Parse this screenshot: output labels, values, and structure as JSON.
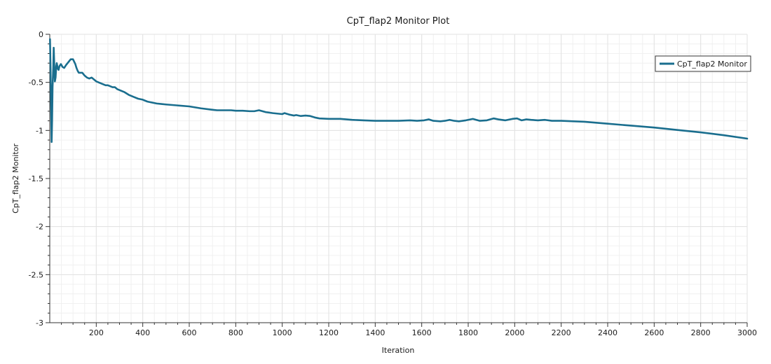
{
  "chart_data": {
    "type": "line",
    "title": "CpT_flap2 Monitor Plot",
    "xlabel": "Iteration",
    "ylabel": "CpT_flap2 Monitor",
    "xlim": [
      0,
      3000
    ],
    "ylim": [
      -3,
      0
    ],
    "x_ticks": [
      200,
      400,
      600,
      800,
      1000,
      1200,
      1400,
      1600,
      1800,
      2000,
      2200,
      2400,
      2600,
      2800,
      3000
    ],
    "x_tick_labels": [
      "200",
      "400",
      "600",
      "800",
      "1000",
      "1200",
      "1400",
      "1600",
      "1800",
      "2000",
      "2200",
      "2400",
      "2600",
      "2800",
      "3000"
    ],
    "y_ticks": [
      0,
      -0.5,
      -1,
      -1.5,
      -2,
      -2.5,
      -3
    ],
    "y_tick_labels": [
      "0",
      "-0.5",
      "-1",
      "-1.5",
      "-2",
      "-2.5",
      "-3"
    ],
    "grid": true,
    "legend_position": "top-right",
    "series": [
      {
        "name": "CpT_flap2 Monitor",
        "color": "#1a6e8e",
        "x": [
          1,
          3,
          6,
          8,
          10,
          12,
          15,
          17,
          20,
          22,
          25,
          28,
          30,
          35,
          38,
          42,
          48,
          55,
          62,
          70,
          80,
          90,
          100,
          110,
          115,
          120,
          125,
          130,
          140,
          150,
          160,
          170,
          180,
          190,
          200,
          210,
          220,
          230,
          240,
          250,
          260,
          270,
          280,
          290,
          300,
          320,
          340,
          360,
          380,
          400,
          420,
          440,
          460,
          480,
          500,
          550,
          600,
          650,
          700,
          720,
          750,
          780,
          800,
          830,
          860,
          880,
          900,
          930,
          960,
          1000,
          1010,
          1030,
          1050,
          1060,
          1080,
          1100,
          1120,
          1140,
          1160,
          1200,
          1250,
          1300,
          1350,
          1400,
          1450,
          1500,
          1550,
          1580,
          1610,
          1630,
          1650,
          1680,
          1700,
          1720,
          1740,
          1760,
          1790,
          1820,
          1850,
          1880,
          1910,
          1930,
          1960,
          1990,
          2010,
          2030,
          2050,
          2070,
          2100,
          2130,
          2160,
          2200,
          2300,
          2400,
          2500,
          2600,
          2700,
          2800,
          2900,
          3000
        ],
        "y": [
          -0.05,
          -0.3,
          -0.8,
          -1.12,
          -0.9,
          -0.55,
          -0.35,
          -0.14,
          -0.35,
          -0.49,
          -0.45,
          -0.33,
          -0.3,
          -0.36,
          -0.37,
          -0.33,
          -0.31,
          -0.34,
          -0.35,
          -0.32,
          -0.29,
          -0.26,
          -0.26,
          -0.31,
          -0.35,
          -0.38,
          -0.4,
          -0.4,
          -0.4,
          -0.43,
          -0.45,
          -0.46,
          -0.45,
          -0.47,
          -0.49,
          -0.5,
          -0.51,
          -0.52,
          -0.53,
          -0.53,
          -0.54,
          -0.55,
          -0.55,
          -0.57,
          -0.58,
          -0.6,
          -0.63,
          -0.65,
          -0.67,
          -0.68,
          -0.7,
          -0.71,
          -0.72,
          -0.725,
          -0.73,
          -0.74,
          -0.75,
          -0.77,
          -0.785,
          -0.79,
          -0.79,
          -0.79,
          -0.795,
          -0.795,
          -0.8,
          -0.8,
          -0.79,
          -0.81,
          -0.82,
          -0.83,
          -0.82,
          -0.835,
          -0.845,
          -0.84,
          -0.85,
          -0.845,
          -0.85,
          -0.865,
          -0.875,
          -0.88,
          -0.88,
          -0.89,
          -0.895,
          -0.9,
          -0.9,
          -0.9,
          -0.895,
          -0.9,
          -0.895,
          -0.885,
          -0.9,
          -0.905,
          -0.9,
          -0.89,
          -0.9,
          -0.905,
          -0.895,
          -0.88,
          -0.9,
          -0.895,
          -0.875,
          -0.885,
          -0.895,
          -0.88,
          -0.875,
          -0.895,
          -0.885,
          -0.89,
          -0.895,
          -0.89,
          -0.9,
          -0.9,
          -0.91,
          -0.93,
          -0.95,
          -0.97,
          -0.995,
          -1.02,
          -1.05,
          -1.085
        ]
      }
    ]
  }
}
